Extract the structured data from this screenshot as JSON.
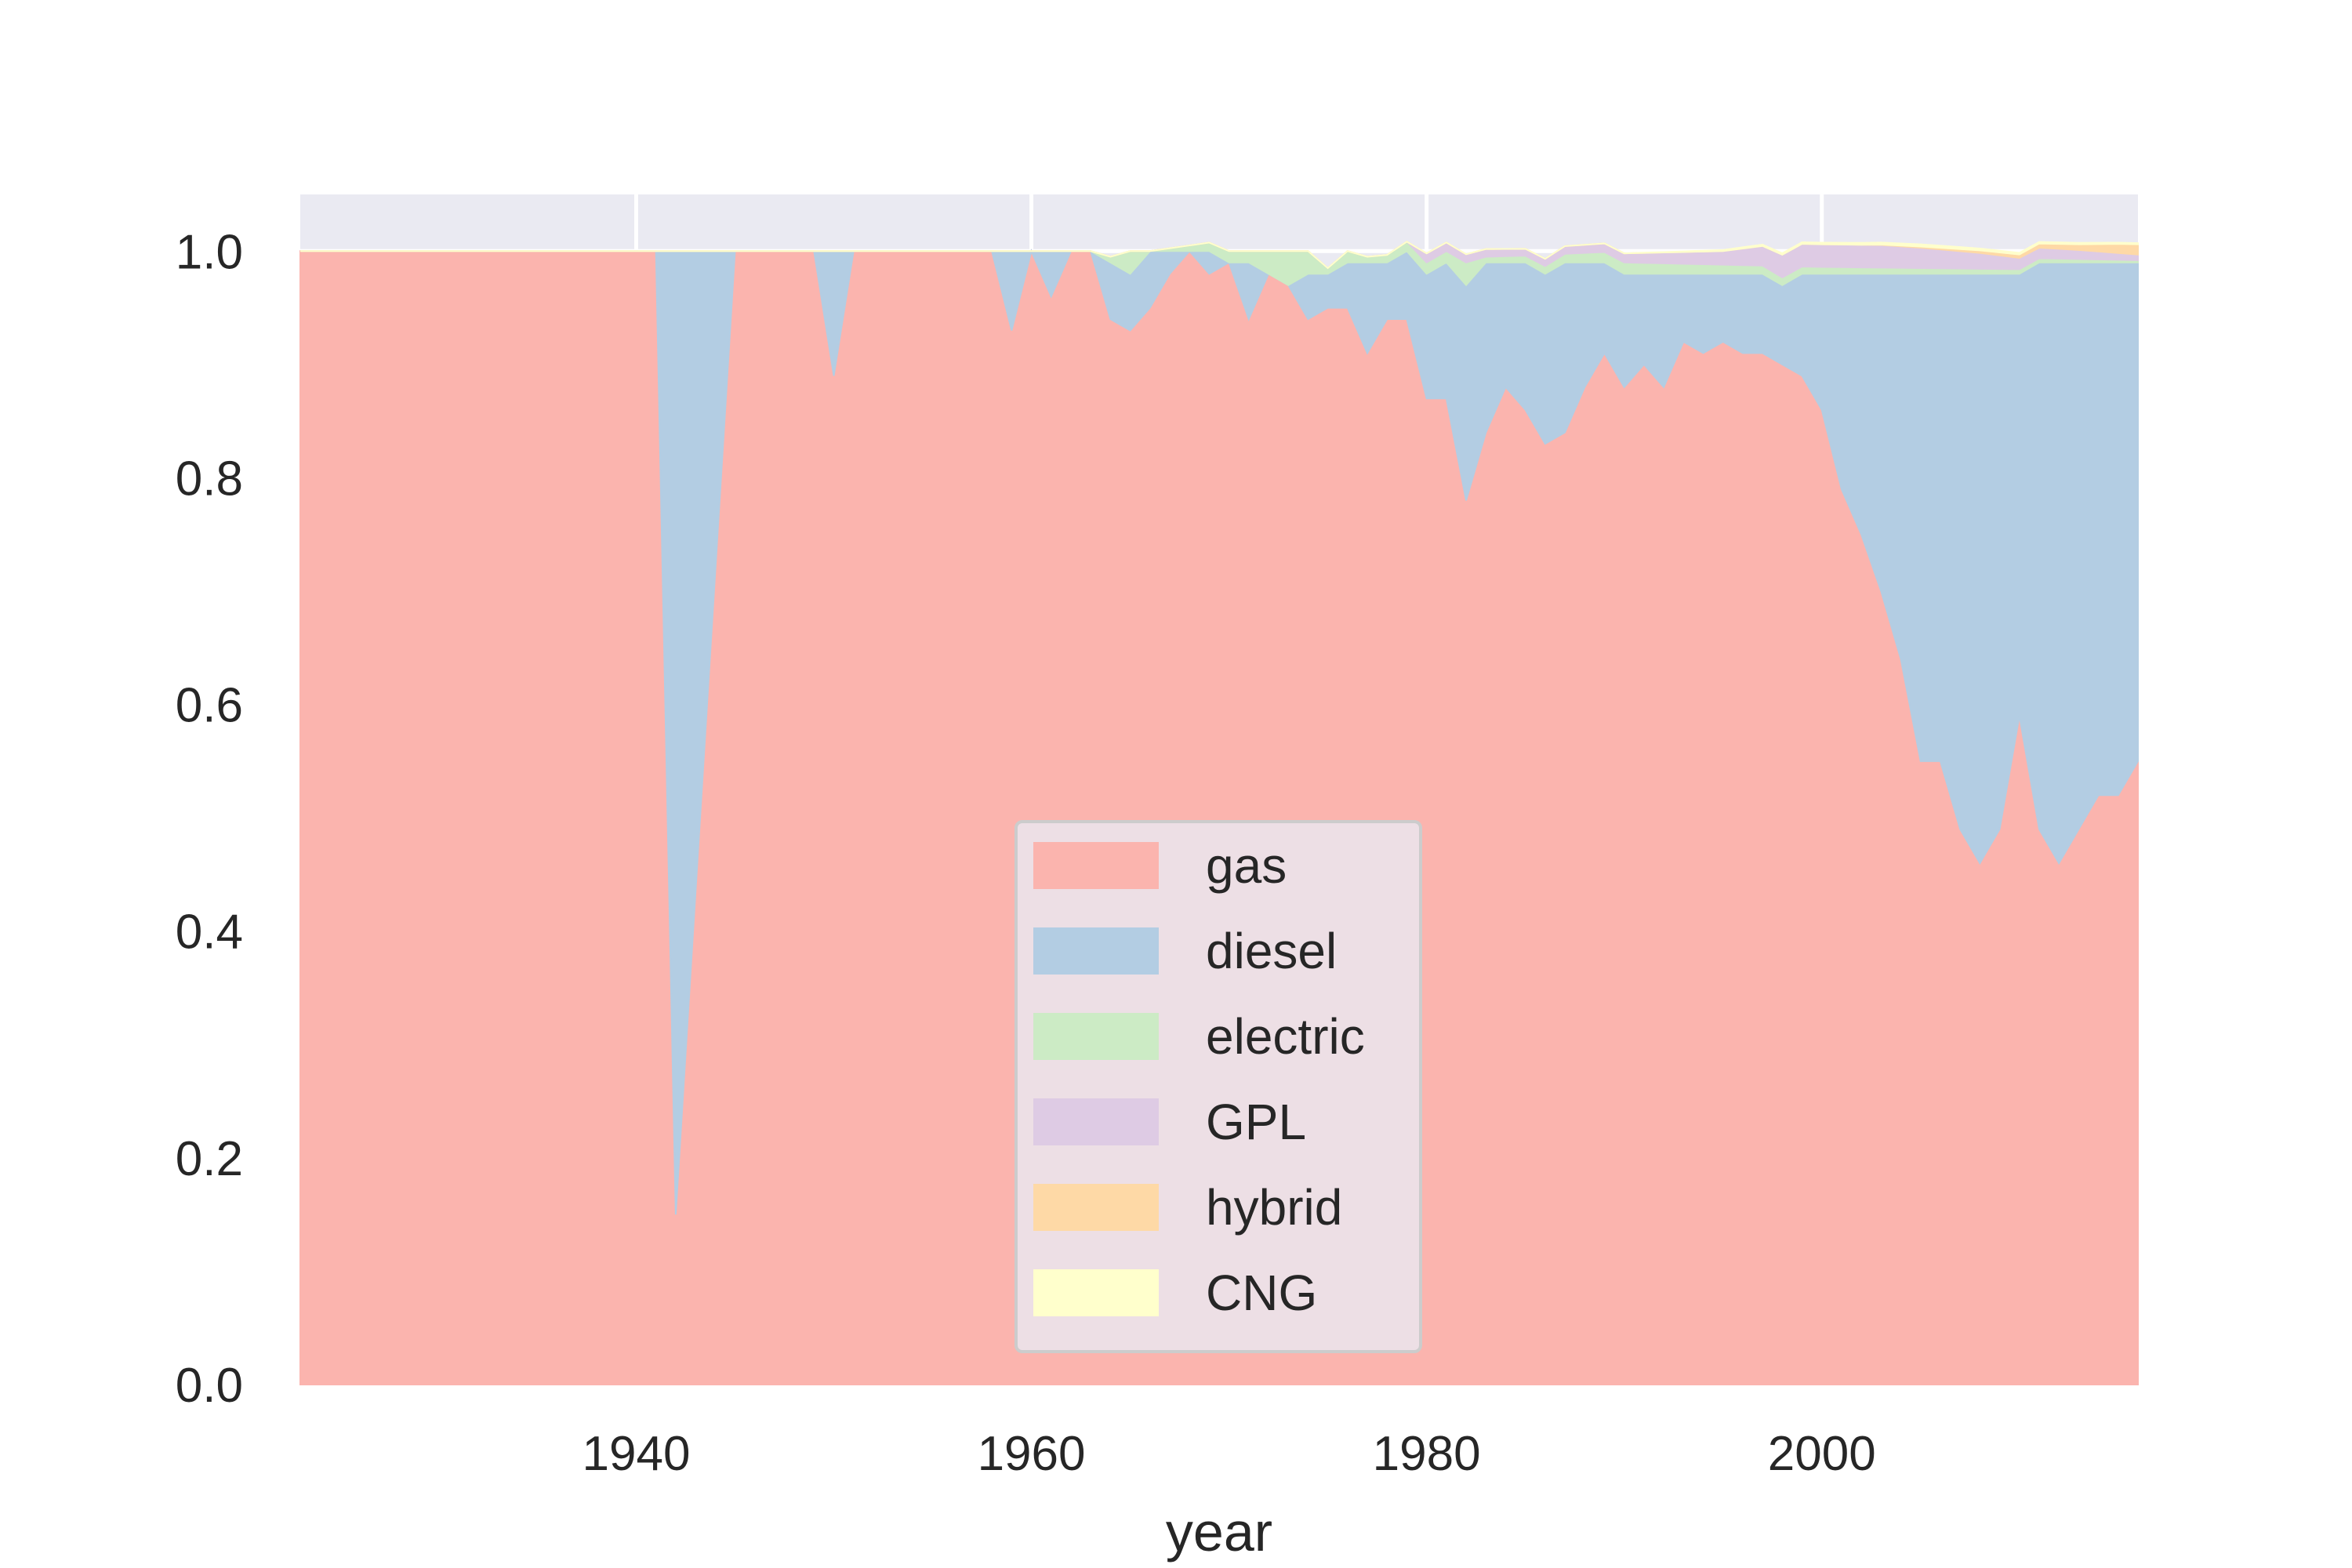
{
  "chart_data": {
    "type": "area",
    "stacked": true,
    "normalized": true,
    "title": "",
    "xlabel": "year",
    "ylabel": "",
    "xlim": [
      1923,
      2016
    ],
    "ylim": [
      0,
      1.05
    ],
    "x_ticks": [
      1940,
      1960,
      1980,
      2000
    ],
    "x_tick_labels": [
      "1940",
      "1960",
      "1980",
      "2000"
    ],
    "y_ticks": [
      0.0,
      0.2,
      0.4,
      0.6,
      0.8,
      1.0
    ],
    "y_tick_labels": [
      "0.0",
      "0.2",
      "0.4",
      "0.6",
      "0.8",
      "1.0"
    ],
    "grid": true,
    "legend_position": "lower-center",
    "colors": {
      "axes_bg": "#eaeaf2",
      "grid": "#ffffff",
      "legend_bg": "#eaeaf2",
      "legend_edge": "#cccccc"
    },
    "series": [
      {
        "name": "gas",
        "color": "#fbb4ae",
        "points": [
          [
            1923,
            1.0
          ],
          [
            1941,
            1.0
          ],
          [
            1942,
            0.15
          ],
          [
            1945,
            1.0
          ],
          [
            1949,
            1.0
          ],
          [
            1950,
            0.89
          ],
          [
            1951,
            1.0
          ],
          [
            1958,
            1.0
          ],
          [
            1959,
            0.93
          ],
          [
            1960,
            1.0
          ],
          [
            1961,
            0.96
          ],
          [
            1962,
            1.0
          ],
          [
            1963,
            1.0
          ],
          [
            1964,
            0.94
          ],
          [
            1965,
            0.93
          ],
          [
            1966,
            0.95
          ],
          [
            1967,
            0.98
          ],
          [
            1968,
            1.0
          ],
          [
            1969,
            0.98
          ],
          [
            1970,
            0.99
          ],
          [
            1971,
            0.94
          ],
          [
            1972,
            0.98
          ],
          [
            1973,
            0.97
          ],
          [
            1974,
            0.94
          ],
          [
            1975,
            0.95
          ],
          [
            1976,
            0.95
          ],
          [
            1977,
            0.91
          ],
          [
            1978,
            0.94
          ],
          [
            1979,
            0.94
          ],
          [
            1980,
            0.87
          ],
          [
            1981,
            0.87
          ],
          [
            1982,
            0.78
          ],
          [
            1983,
            0.84
          ],
          [
            1984,
            0.88
          ],
          [
            1985,
            0.86
          ],
          [
            1986,
            0.83
          ],
          [
            1987,
            0.84
          ],
          [
            1988,
            0.88
          ],
          [
            1989,
            0.91
          ],
          [
            1990,
            0.88
          ],
          [
            1991,
            0.9
          ],
          [
            1992,
            0.88
          ],
          [
            1993,
            0.92
          ],
          [
            1994,
            0.91
          ],
          [
            1995,
            0.92
          ],
          [
            1996,
            0.91
          ],
          [
            1997,
            0.91
          ],
          [
            1998,
            0.9
          ],
          [
            1999,
            0.89
          ],
          [
            2000,
            0.86
          ],
          [
            2001,
            0.79
          ],
          [
            2002,
            0.75
          ],
          [
            2003,
            0.7
          ],
          [
            2004,
            0.64
          ],
          [
            2005,
            0.55
          ],
          [
            2006,
            0.55
          ],
          [
            2007,
            0.49
          ],
          [
            2008,
            0.46
          ],
          [
            2009,
            0.49
          ],
          [
            2010,
            0.59
          ],
          [
            2011,
            0.49
          ],
          [
            2012,
            0.46
          ],
          [
            2013,
            0.49
          ],
          [
            2014,
            0.52
          ],
          [
            2015,
            0.52
          ],
          [
            2016,
            0.55
          ],
          [
            2017,
            0.67
          ]
        ]
      },
      {
        "name": "diesel",
        "color": "#b3cde3",
        "points": [
          [
            1923,
            0.0
          ],
          [
            1941,
            0.0
          ],
          [
            1942,
            0.85
          ],
          [
            1945,
            0.0
          ],
          [
            1949,
            0.0
          ],
          [
            1950,
            0.11
          ],
          [
            1951,
            0.0
          ],
          [
            1958,
            0.0
          ],
          [
            1959,
            0.07
          ],
          [
            1960,
            0.0
          ],
          [
            1961,
            0.04
          ],
          [
            1962,
            0.0
          ],
          [
            1963,
            0.0
          ],
          [
            1964,
            0.05
          ],
          [
            1965,
            0.05
          ],
          [
            1966,
            0.05
          ],
          [
            1967,
            0.02
          ],
          [
            1968,
            0.0
          ],
          [
            1969,
            0.02
          ],
          [
            1970,
            0.0
          ],
          [
            1971,
            0.05
          ],
          [
            1972,
            0.0
          ],
          [
            1973,
            0.0
          ],
          [
            1974,
            0.04
          ],
          [
            1975,
            0.03
          ],
          [
            1976,
            0.04
          ],
          [
            1977,
            0.08
          ],
          [
            1978,
            0.05
          ],
          [
            1979,
            0.06
          ],
          [
            1980,
            0.11
          ],
          [
            1981,
            0.12
          ],
          [
            1982,
            0.19
          ],
          [
            1983,
            0.15
          ],
          [
            1984,
            0.11
          ],
          [
            1985,
            0.13
          ],
          [
            1986,
            0.15
          ],
          [
            1987,
            0.15
          ],
          [
            1988,
            0.11
          ],
          [
            1989,
            0.08
          ],
          [
            1990,
            0.1
          ],
          [
            1991,
            0.08
          ],
          [
            1992,
            0.1
          ],
          [
            1993,
            0.06
          ],
          [
            1994,
            0.07
          ],
          [
            1995,
            0.06
          ],
          [
            1996,
            0.07
          ],
          [
            1997,
            0.07
          ],
          [
            1998,
            0.07
          ],
          [
            1999,
            0.09
          ],
          [
            2000,
            0.12
          ],
          [
            2001,
            0.19
          ],
          [
            2002,
            0.23
          ],
          [
            2003,
            0.28
          ],
          [
            2004,
            0.34
          ],
          [
            2005,
            0.43
          ],
          [
            2006,
            0.43
          ],
          [
            2007,
            0.49
          ],
          [
            2008,
            0.52
          ],
          [
            2009,
            0.49
          ],
          [
            2010,
            0.39
          ],
          [
            2011,
            0.5
          ],
          [
            2012,
            0.53
          ],
          [
            2013,
            0.5
          ],
          [
            2014,
            0.47
          ],
          [
            2015,
            0.47
          ],
          [
            2016,
            0.44
          ],
          [
            2017,
            0.32
          ]
        ]
      },
      {
        "name": "electric",
        "color": "#ccebc5",
        "points": [
          [
            1923,
            0.0
          ],
          [
            1963,
            0.0
          ],
          [
            1964,
            0.005
          ],
          [
            1965,
            0.02
          ],
          [
            1966,
            0.0
          ],
          [
            1970,
            0.01
          ],
          [
            1971,
            0.01
          ],
          [
            1972,
            0.02
          ],
          [
            1973,
            0.03
          ],
          [
            1974,
            0.02
          ],
          [
            1975,
            0.005
          ],
          [
            1976,
            0.01
          ],
          [
            1977,
            0.005
          ],
          [
            1980,
            0.01
          ],
          [
            1981,
            0.01
          ],
          [
            1982,
            0.02
          ],
          [
            1983,
            0.005
          ],
          [
            1985,
            0.006
          ],
          [
            1990,
            0.01
          ],
          [
            1995,
            0.008
          ],
          [
            2000,
            0.006
          ],
          [
            2005,
            0.005
          ],
          [
            2010,
            0.004
          ],
          [
            2016,
            0.002
          ],
          [
            2017,
            0.002
          ]
        ]
      },
      {
        "name": "GPL",
        "color": "#decbe4",
        "points": [
          [
            1923,
            0.0
          ],
          [
            1979,
            0.0
          ],
          [
            1980,
            0.008
          ],
          [
            1985,
            0.006
          ],
          [
            1990,
            0.008
          ],
          [
            1995,
            0.012
          ],
          [
            1998,
            0.02
          ],
          [
            2000,
            0.02
          ],
          [
            2003,
            0.02
          ],
          [
            2005,
            0.018
          ],
          [
            2008,
            0.014
          ],
          [
            2010,
            0.01
          ],
          [
            2013,
            0.008
          ],
          [
            2016,
            0.005
          ],
          [
            2017,
            0.003
          ]
        ]
      },
      {
        "name": "hybrid",
        "color": "#fed9a6",
        "points": [
          [
            1923,
            0.0
          ],
          [
            2002,
            0.0
          ],
          [
            2005,
            0.001
          ],
          [
            2010,
            0.003
          ],
          [
            2013,
            0.005
          ],
          [
            2015,
            0.008
          ],
          [
            2016,
            0.009
          ],
          [
            2017,
            0.006
          ]
        ]
      },
      {
        "name": "CNG",
        "color": "#ffffcc",
        "points": [
          [
            1923,
            0.0
          ],
          [
            1990,
            0.0
          ],
          [
            1995,
            0.001
          ],
          [
            2000,
            0.0015
          ],
          [
            2005,
            0.002
          ],
          [
            2010,
            0.0015
          ],
          [
            2017,
            0.001
          ]
        ]
      }
    ]
  }
}
